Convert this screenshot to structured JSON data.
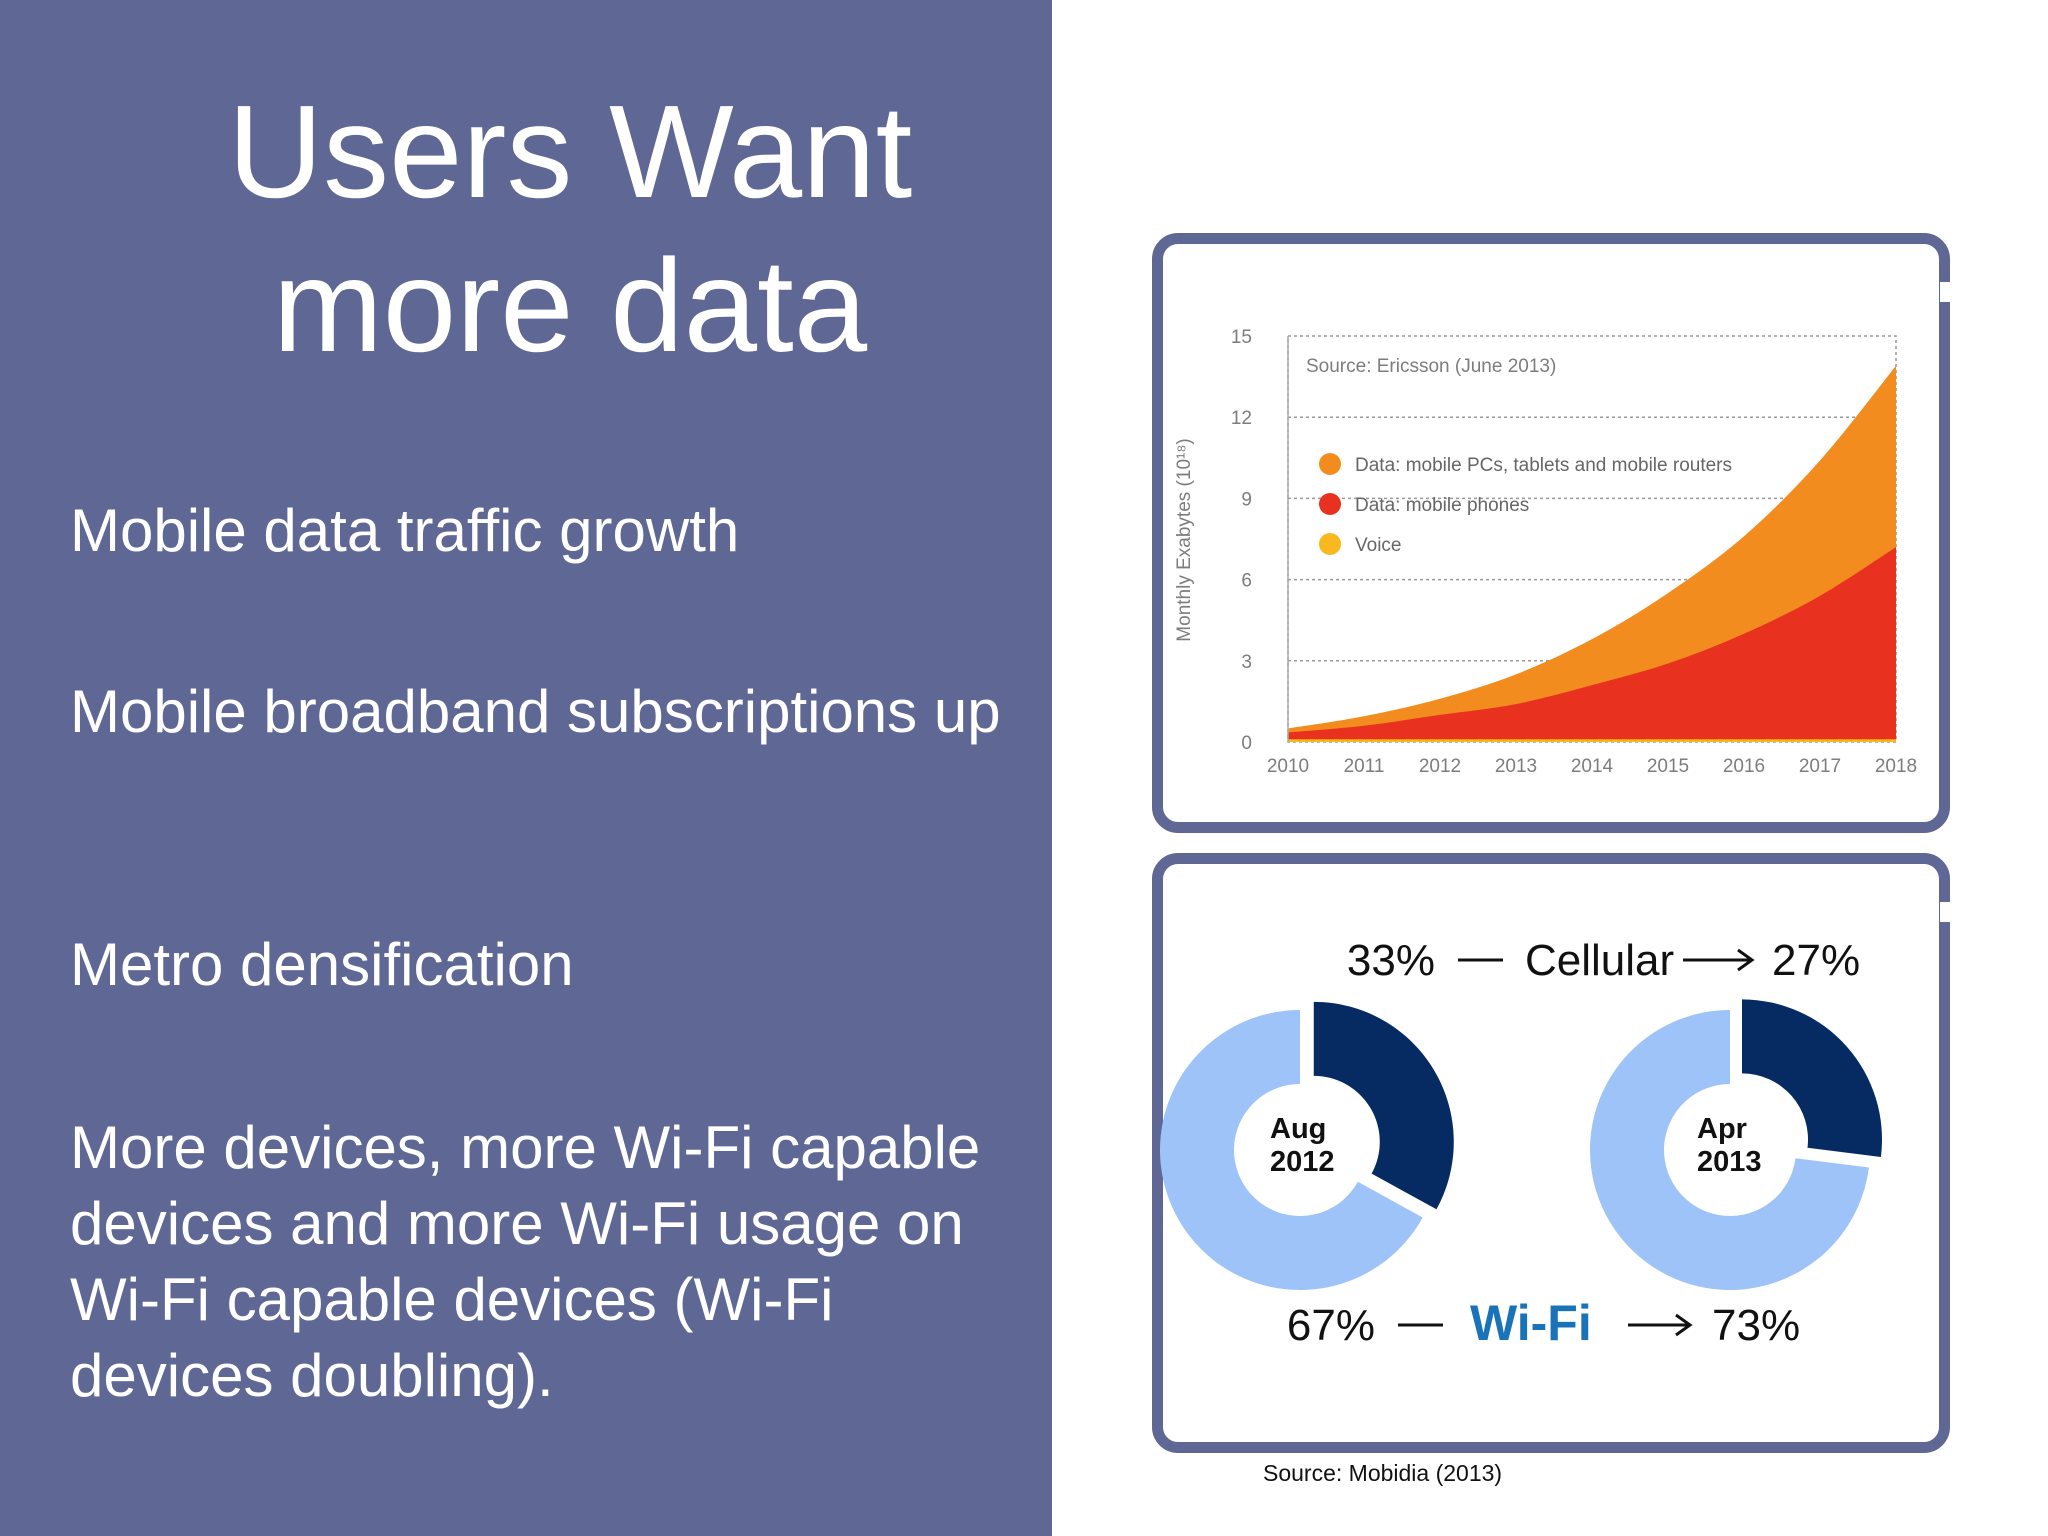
{
  "slide": {
    "title_line1": "Users Want",
    "title_line2": "more data",
    "bullets": [
      "Mobile data traffic growth",
      "Mobile broadband subscriptions up",
      "Metro densification",
      "More devices, more Wi-Fi capable devices and more Wi-Fi usage on Wi-Fi capable devices (Wi-Fi devices doubling)."
    ],
    "bottom_source": "Source: Mobidia (2013)"
  },
  "colors": {
    "background_left": "#5f6794",
    "orange": "#f28c1e",
    "red": "#e8321f",
    "voice": "#f8b81e",
    "cellular": "#062b63",
    "wifi_ring": "#9ec3f8",
    "wifi_text": "#1a73b8"
  },
  "chart_data": [
    {
      "type": "area",
      "source_note": "Source: Ericsson (June 2013)",
      "ylabel": "Monthly Exabytes (10¹⁸)",
      "ylim": [
        0,
        15
      ],
      "yticks": [
        "0",
        "3",
        "6",
        "9",
        "12",
        "15"
      ],
      "x": [
        "2010",
        "2011",
        "2012",
        "2013",
        "2014",
        "2015",
        "2016",
        "2017",
        "2018"
      ],
      "grid": true,
      "legend_position": "top-left",
      "series": [
        {
          "name": "Voice",
          "color": "#f8b81e",
          "values": [
            0.1,
            0.1,
            0.1,
            0.1,
            0.1,
            0.1,
            0.1,
            0.1,
            0.1
          ]
        },
        {
          "name": "Data: mobile phones",
          "color": "#e8321f",
          "values": [
            0.25,
            0.5,
            0.9,
            1.3,
            2.0,
            2.8,
            3.9,
            5.3,
            7.1
          ]
        },
        {
          "name": "Data: mobile PCs, tablets and mobile routers",
          "color": "#f28c1e",
          "values": [
            0.15,
            0.35,
            0.6,
            1.1,
            1.7,
            2.6,
            3.6,
            5.0,
            6.7
          ]
        }
      ]
    },
    {
      "type": "pie",
      "donuts": [
        {
          "label_line1": "Aug",
          "label_line2": "2012",
          "slices": [
            {
              "name": "Cellular",
              "value": 33
            },
            {
              "name": "Wi-Fi",
              "value": 67
            }
          ]
        },
        {
          "label_line1": "Apr",
          "label_line2": "2013",
          "slices": [
            {
              "name": "Cellular",
              "value": 27
            },
            {
              "name": "Wi-Fi",
              "value": 73
            }
          ]
        }
      ],
      "cellular_label": "Cellular",
      "wifi_label": "Wi-Fi",
      "cellular_before": "33%",
      "cellular_after": "27%",
      "wifi_before": "67%",
      "wifi_after": "73%"
    }
  ]
}
